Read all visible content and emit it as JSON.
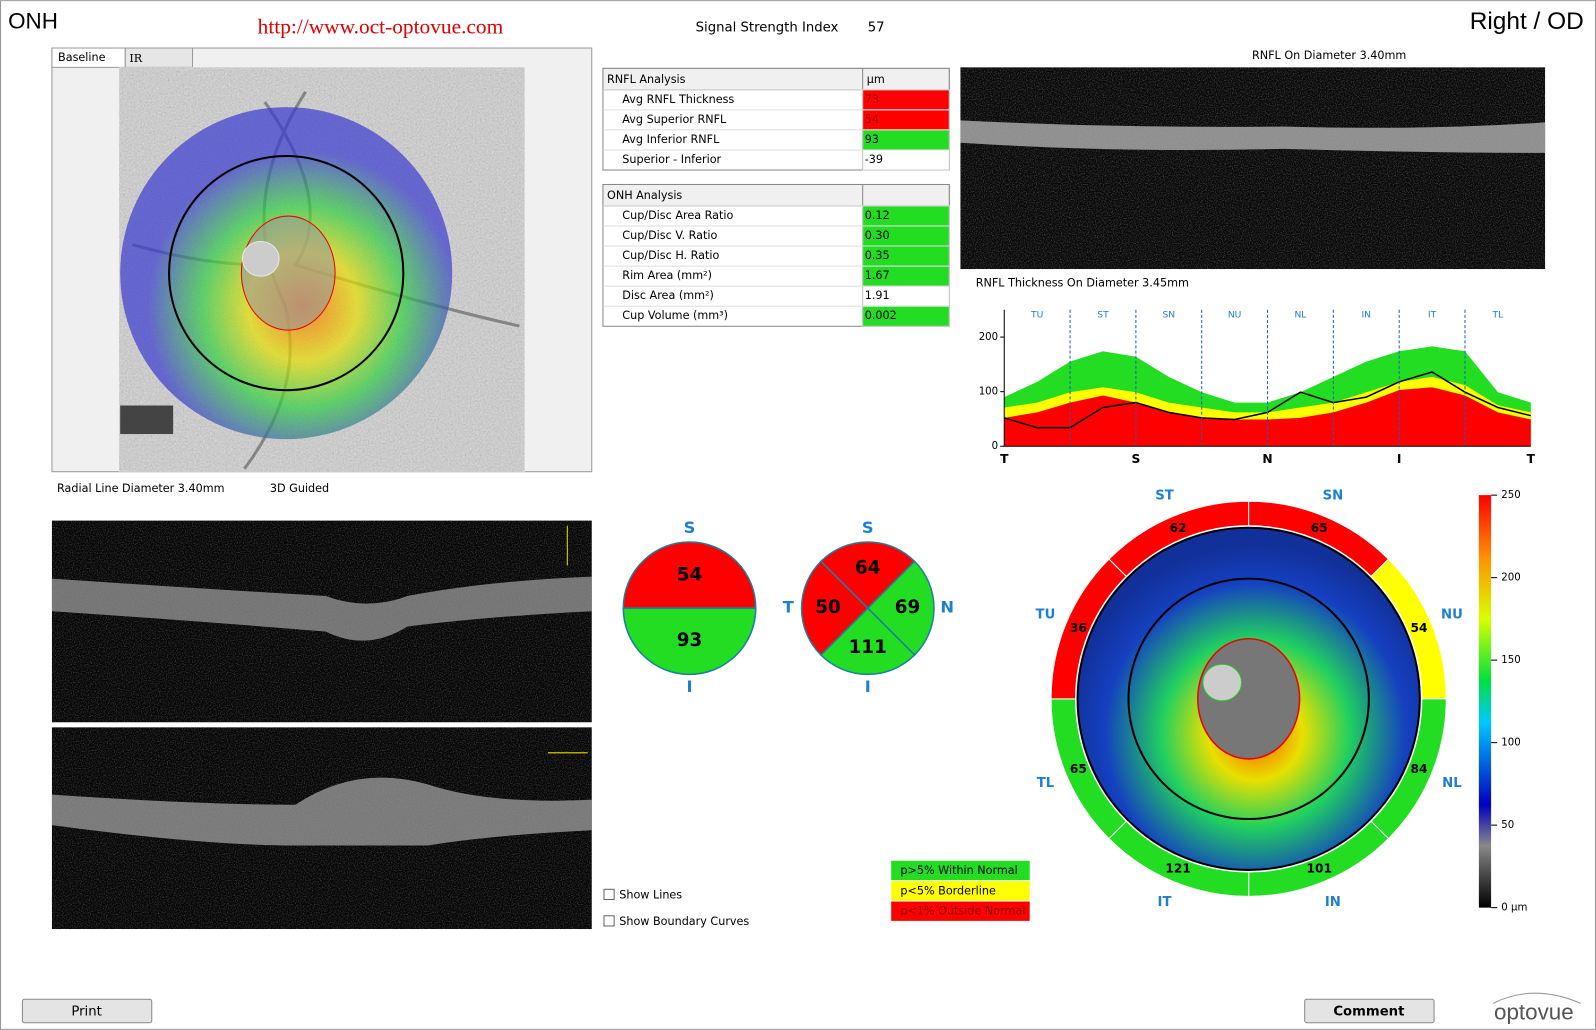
{
  "header": {
    "title": "ONH",
    "url": "http://www.oct-optovue.com",
    "signal_label": "Signal Strength Index",
    "signal_value": "57",
    "eye": "Right / OD"
  },
  "tabs": [
    "Baseline",
    "IR"
  ],
  "labels": {
    "radial_line": "Radial Line Diameter 3.40mm",
    "guided": "3D Guided",
    "rnfl_scan": "RNFL On Diameter 3.40mm",
    "tsnit_title": "RNFL Thickness On Diameter 3.45mm"
  },
  "rnfl_table": {
    "header": [
      "RNFL Analysis",
      "µm"
    ],
    "rows": [
      {
        "label": "Avg RNFL Thickness",
        "value": "73",
        "color": "#ff0000"
      },
      {
        "label": "Avg Superior RNFL",
        "value": "54",
        "color": "#ff0000"
      },
      {
        "label": "Avg Inferior RNFL",
        "value": "93",
        "color": "#22dd22"
      },
      {
        "label": "Superior - Inferior",
        "value": "-39",
        "color": "#ffffff"
      }
    ]
  },
  "onh_table": {
    "header": [
      "ONH Analysis"
    ],
    "rows": [
      {
        "label": "Cup/Disc Area Ratio",
        "value": "0.12",
        "color": "#22dd22"
      },
      {
        "label": "Cup/Disc V. Ratio",
        "value": "0.30",
        "color": "#22dd22"
      },
      {
        "label": "Cup/Disc H. Ratio",
        "value": "0.35",
        "color": "#22dd22"
      },
      {
        "label": "Rim Area (mm²)",
        "value": "1.67",
        "color": "#22dd22"
      },
      {
        "label": "Disc Area (mm²)",
        "value": "1.91",
        "color": "#ffffff"
      },
      {
        "label": "Cup Volume (mm³)",
        "value": "0.002",
        "color": "#22dd22"
      }
    ]
  },
  "hemi_chart": {
    "sectors": [
      {
        "name": "S",
        "value": 54,
        "color": "#ff0000"
      },
      {
        "name": "I",
        "value": 93,
        "color": "#22dd22"
      }
    ]
  },
  "quadrant_chart": {
    "sectors": [
      {
        "name": "S",
        "value": 64,
        "color": "#ff0000"
      },
      {
        "name": "N",
        "value": 69,
        "color": "#22dd22"
      },
      {
        "name": "I",
        "value": 111,
        "color": "#22dd22"
      },
      {
        "name": "T",
        "value": 50,
        "color": "#ff0000"
      }
    ]
  },
  "clock_chart": {
    "sectors": [
      {
        "name": "ST",
        "value": 62,
        "color": "#ff0000"
      },
      {
        "name": "SN",
        "value": 65,
        "color": "#ff0000"
      },
      {
        "name": "NU",
        "value": 54,
        "color": "#ffff00"
      },
      {
        "name": "NL",
        "value": 84,
        "color": "#22dd22"
      },
      {
        "name": "IN",
        "value": 101,
        "color": "#22dd22"
      },
      {
        "name": "IT",
        "value": 121,
        "color": "#22dd22"
      },
      {
        "name": "TL",
        "value": 65,
        "color": "#22dd22"
      },
      {
        "name": "TU",
        "value": 36,
        "color": "#ff0000"
      }
    ]
  },
  "colorbar": {
    "ylim": [
      0,
      250
    ],
    "yticks": [
      {
        "value": 0,
        "label": "0 µm"
      },
      50,
      100,
      150,
      200,
      250
    ]
  },
  "tsnit": {
    "type": "area",
    "ylim": [
      0,
      250
    ],
    "yticks": [
      0,
      100,
      200
    ],
    "sector_labels": [
      "TU",
      "ST",
      "SN",
      "NU",
      "NL",
      "IN",
      "IT",
      "TL"
    ],
    "x_labels": [
      "T",
      "S",
      "N",
      "I",
      "T"
    ],
    "bands": [
      {
        "color": "#22dd22",
        "values": [
          90,
          118,
          155,
          174,
          164,
          127,
          99,
          80,
          80,
          99,
          127,
          155,
          174,
          183,
          174,
          99,
          80
        ]
      },
      {
        "color": "#ffff00",
        "values": [
          71,
          80,
          99,
          108,
          99,
          80,
          71,
          62,
          62,
          71,
          80,
          99,
          118,
          127,
          112,
          75,
          62
        ]
      },
      {
        "color": "#ff0000",
        "values": [
          52,
          62,
          80,
          93,
          80,
          62,
          52,
          49,
          49,
          52,
          62,
          80,
          103,
          108,
          93,
          62,
          49
        ]
      }
    ],
    "thickness": {
      "color": "#000000",
      "values": [
        52,
        34,
        34,
        71,
        80,
        62,
        52,
        49,
        62,
        99,
        80,
        90,
        118,
        136,
        99,
        71,
        56
      ]
    }
  },
  "legend": [
    {
      "label": "p>5% Within Normal",
      "color": "#22dd22"
    },
    {
      "label": "p<5% Borderline",
      "color": "#ffff00"
    },
    {
      "label": "p<1% Outside Normal",
      "color": "#ff0000"
    }
  ],
  "checkboxes": [
    "Show Lines",
    "Show Boundary Curves"
  ],
  "buttons": {
    "print": "Print",
    "comment": "Comment"
  },
  "logo": "optovue"
}
